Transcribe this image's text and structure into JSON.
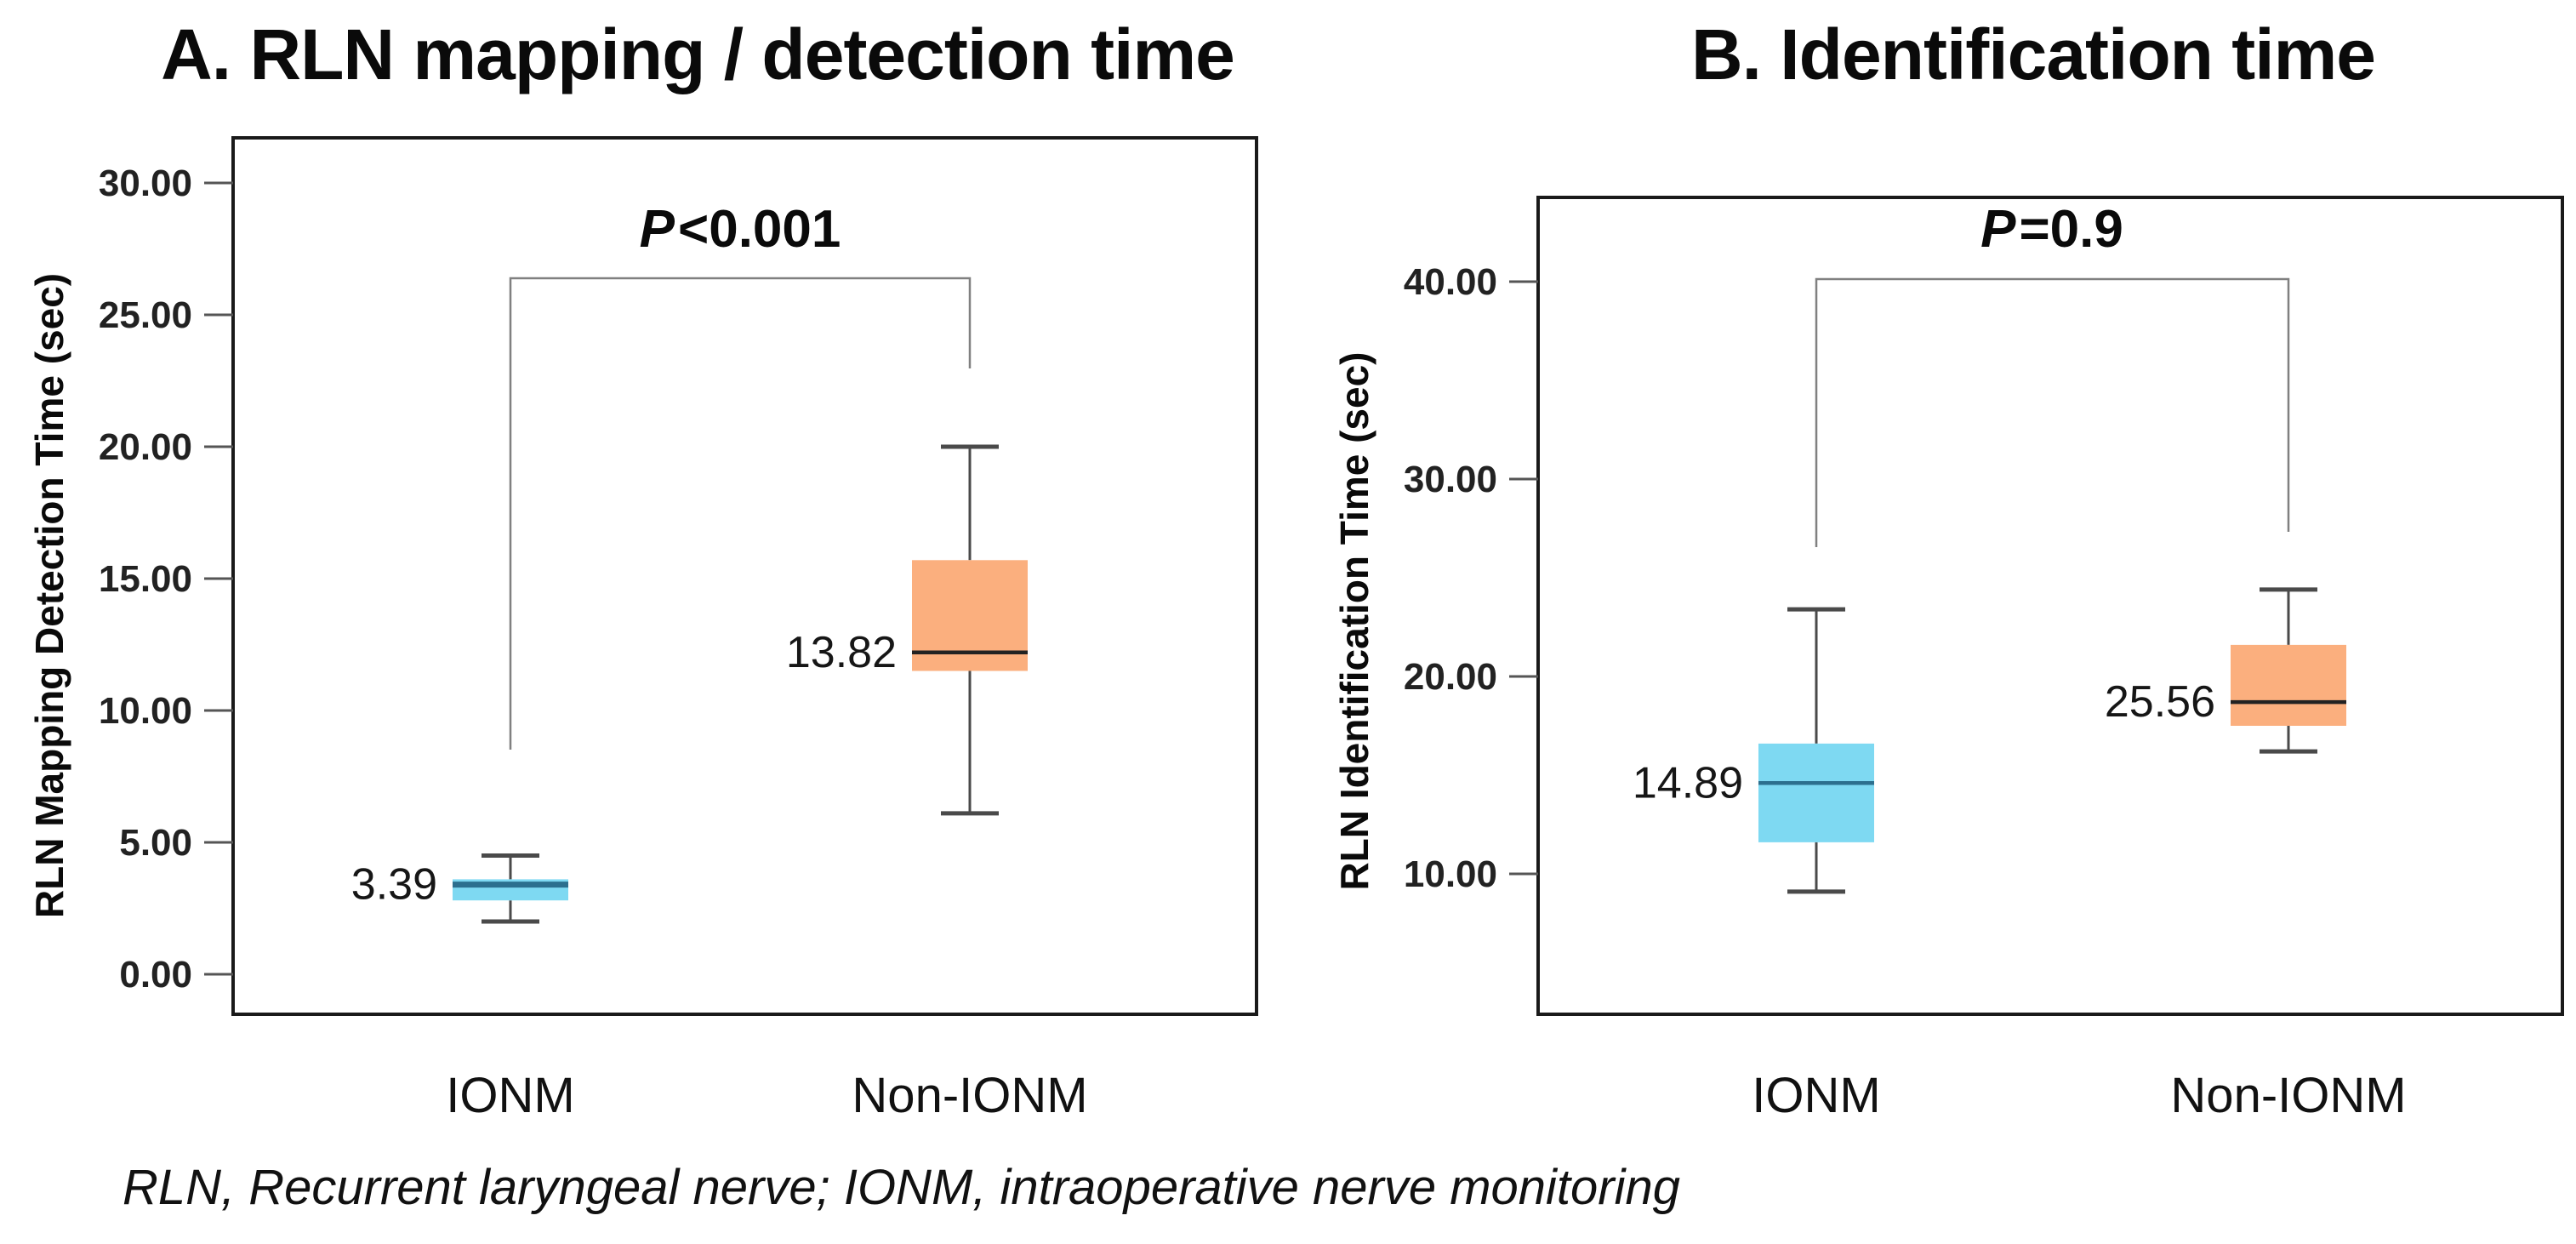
{
  "figure": {
    "panels": [
      {
        "label": "A",
        "title": "A. RLN mapping / detection time",
        "ylabel": "RLN Mapping Detection Time (sec)",
        "significance": {
          "p_symbol": "P",
          "p_comparison": "<0.001"
        }
      },
      {
        "label": "B",
        "title": "B. Identification time",
        "ylabel": "RLN Identification Time (sec)",
        "significance": {
          "p_symbol": "P",
          "p_comparison": "=0.9"
        }
      }
    ],
    "footnote": "RLN, Recurrent laryngeal nerve; IONM, intraoperative nerve monitoring"
  },
  "colors": {
    "ionm_fill": "#7ED9F2",
    "ionm_median": "#2c6f8e",
    "non_ionm_fill": "#FBAF7E",
    "non_ionm_median": "#222222",
    "whisker": "#4a4a4a",
    "bracket": "#808080",
    "frame": "#1a1a1a",
    "tick": "#555555"
  },
  "chart_data": [
    {
      "type": "box",
      "panel": "A",
      "title": "A. RLN mapping / detection time",
      "ylabel": "RLN Mapping Detection Time (sec)",
      "categories": [
        "IONM",
        "Non-IONM"
      ],
      "yticks": [
        0,
        5,
        10,
        15,
        20,
        25,
        30
      ],
      "ytick_labels": [
        "0.00",
        "5.00",
        "10.00",
        "15.00",
        "20.00",
        "25.00",
        "30.00"
      ],
      "ylim": [
        -1.5,
        31.7
      ],
      "grid": false,
      "significance_label": "P<0.001",
      "boxes": [
        {
          "category": "IONM",
          "color_key": "ionm",
          "whisker_low": 2.0,
          "q1": 2.8,
          "median": 3.4,
          "q3": 3.6,
          "whisker_high": 4.5,
          "value_label": "3.39"
        },
        {
          "category": "Non-IONM",
          "color_key": "non_ionm",
          "whisker_low": 6.1,
          "q1": 11.5,
          "median": 12.2,
          "q3": 15.7,
          "whisker_high": 20.0,
          "value_label": "13.82"
        }
      ]
    },
    {
      "type": "box",
      "panel": "B",
      "title": "B. Identification time",
      "ylabel": "RLN Identification Time (sec)",
      "categories": [
        "IONM",
        "Non-IONM"
      ],
      "yticks": [
        10,
        20,
        30,
        40
      ],
      "ytick_labels": [
        "10.00",
        "20.00",
        "30.00",
        "40.00"
      ],
      "ylim": [
        2.9,
        44.3
      ],
      "grid": false,
      "significance_label": "P=0.9",
      "boxes": [
        {
          "category": "IONM",
          "color_key": "ionm",
          "whisker_low": 9.1,
          "q1": 11.6,
          "median": 14.6,
          "q3": 16.6,
          "whisker_high": 23.4,
          "value_label": "14.89"
        },
        {
          "category": "Non-IONM",
          "color_key": "non_ionm",
          "whisker_low": 16.2,
          "q1": 17.5,
          "median": 18.7,
          "q3": 21.6,
          "whisker_high": 24.4,
          "value_label": "25.56"
        }
      ]
    }
  ]
}
